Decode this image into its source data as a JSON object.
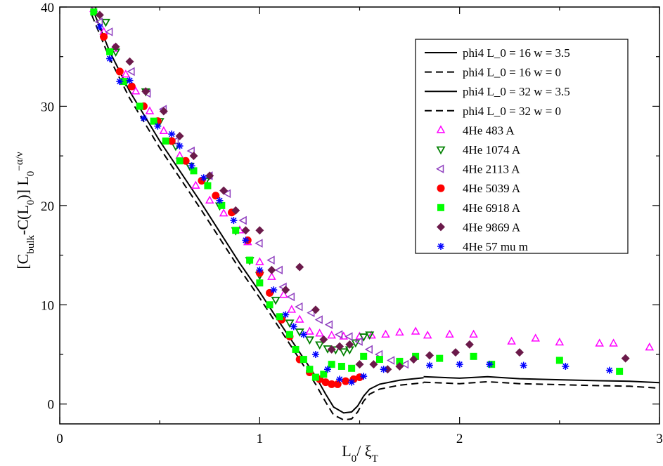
{
  "chart_data": {
    "type": "scatter",
    "title": "",
    "xlabel": {
      "main": "L",
      "sub1": "0",
      "slash": "/ ξ",
      "sub2": "T"
    },
    "ylabel": {
      "open": "[C",
      "sub1": "bulk",
      "mid": "-C(L",
      "sub2": "0",
      "close": ")] L",
      "sub3": "0",
      "sup": "−α/ν"
    },
    "xlim": [
      0,
      3
    ],
    "ylim": [
      -2,
      40
    ],
    "xticks": [
      {
        "value": 0,
        "label": "0"
      },
      {
        "value": 1,
        "label": "1"
      },
      {
        "value": 2,
        "label": "2"
      },
      {
        "value": 3,
        "label": "3"
      }
    ],
    "yticks": [
      {
        "value": 0,
        "label": "0"
      },
      {
        "value": 10,
        "label": "10"
      },
      {
        "value": 20,
        "label": "20"
      },
      {
        "value": 30,
        "label": "30"
      },
      {
        "value": 40,
        "label": "40"
      }
    ],
    "legend_position": "top-right",
    "line_series": [
      {
        "name": "phi4 L_0 = 16 w = 3.5",
        "dash": "solid",
        "points": [
          [
            0.16,
            40
          ],
          [
            0.25,
            35.5
          ],
          [
            0.35,
            31.5
          ],
          [
            0.5,
            26.5
          ],
          [
            0.7,
            20.5
          ],
          [
            0.9,
            14.2
          ],
          [
            1.0,
            11.3
          ],
          [
            1.1,
            8.2
          ],
          [
            1.2,
            5.2
          ],
          [
            1.28,
            2.8
          ],
          [
            1.33,
            1.0
          ],
          [
            1.37,
            -0.3
          ],
          [
            1.42,
            -0.9
          ],
          [
            1.46,
            -0.8
          ],
          [
            1.49,
            -0.2
          ],
          [
            1.52,
            0.8
          ],
          [
            1.55,
            1.5
          ],
          [
            1.6,
            2.0
          ],
          [
            1.7,
            2.4
          ],
          [
            1.8,
            2.6
          ],
          [
            1.82,
            2.65
          ]
        ]
      },
      {
        "name": "phi4 L_0 = 16 w = 0",
        "dash": "dashed",
        "points": [
          [
            0.16,
            39.2
          ],
          [
            0.25,
            34.8
          ],
          [
            0.35,
            30.8
          ],
          [
            0.5,
            25.8
          ],
          [
            0.7,
            19.8
          ],
          [
            0.9,
            13.6
          ],
          [
            1.0,
            10.7
          ],
          [
            1.1,
            7.6
          ],
          [
            1.2,
            4.5
          ],
          [
            1.28,
            2.0
          ],
          [
            1.33,
            0.2
          ],
          [
            1.37,
            -1.1
          ],
          [
            1.42,
            -1.6
          ],
          [
            1.46,
            -1.5
          ],
          [
            1.49,
            -0.8
          ],
          [
            1.52,
            0.3
          ],
          [
            1.55,
            1.0
          ],
          [
            1.6,
            1.5
          ],
          [
            1.7,
            1.9
          ],
          [
            1.8,
            2.1
          ],
          [
            1.82,
            2.15
          ]
        ]
      },
      {
        "name": "phi4 L_0 = 32 w = 3.5",
        "dash": "solid",
        "points": [
          [
            1.82,
            2.75
          ],
          [
            2.0,
            2.6
          ],
          [
            2.14,
            2.75
          ],
          [
            2.3,
            2.55
          ],
          [
            2.5,
            2.45
          ],
          [
            2.7,
            2.35
          ],
          [
            2.85,
            2.3
          ],
          [
            3.0,
            2.15
          ]
        ]
      },
      {
        "name": "phi4 L_0 = 32 w = 0",
        "dash": "dashed",
        "points": [
          [
            1.82,
            2.2
          ],
          [
            2.0,
            2.05
          ],
          [
            2.14,
            2.25
          ],
          [
            2.3,
            2.05
          ],
          [
            2.5,
            1.95
          ],
          [
            2.7,
            1.85
          ],
          [
            2.85,
            1.8
          ],
          [
            3.0,
            1.6
          ]
        ]
      }
    ],
    "scatter_series": [
      {
        "name": "4He   483 A",
        "marker": "triangle-up",
        "color": "#ff00ff",
        "points": [
          [
            0.17,
            39.8
          ],
          [
            0.22,
            37.5
          ],
          [
            0.27,
            35.8
          ],
          [
            0.33,
            33.2
          ],
          [
            0.38,
            31.5
          ],
          [
            0.45,
            29.5
          ],
          [
            0.52,
            27.5
          ],
          [
            0.6,
            25.0
          ],
          [
            0.68,
            22.0
          ],
          [
            0.75,
            20.5
          ],
          [
            0.82,
            19.2
          ],
          [
            0.9,
            17.5
          ],
          [
            0.94,
            16.3
          ],
          [
            1.0,
            14.3
          ],
          [
            1.06,
            12.8
          ],
          [
            1.12,
            11.0
          ],
          [
            1.16,
            9.5
          ],
          [
            1.2,
            8.5
          ],
          [
            1.25,
            7.3
          ],
          [
            1.3,
            7.1
          ],
          [
            1.36,
            6.9
          ],
          [
            1.42,
            6.8
          ],
          [
            1.5,
            6.8
          ],
          [
            1.56,
            6.9
          ],
          [
            1.63,
            7.0
          ],
          [
            1.7,
            7.2
          ],
          [
            1.78,
            7.3
          ],
          [
            1.84,
            6.9
          ],
          [
            1.95,
            7.0
          ],
          [
            2.07,
            7.0
          ],
          [
            2.26,
            6.3
          ],
          [
            2.38,
            6.6
          ],
          [
            2.5,
            6.2
          ],
          [
            2.7,
            6.1
          ],
          [
            2.77,
            6.1
          ],
          [
            2.95,
            5.7
          ]
        ]
      },
      {
        "name": "4He 1074 A",
        "marker": "triangle-down",
        "color": "#008000",
        "points": [
          [
            0.18,
            40.3
          ],
          [
            0.23,
            38.5
          ],
          [
            0.28,
            35.5
          ],
          [
            0.33,
            32.5
          ],
          [
            0.43,
            31.5
          ],
          [
            0.5,
            28.5
          ],
          [
            0.58,
            26.0
          ],
          [
            0.65,
            24.0
          ],
          [
            0.73,
            22.5
          ],
          [
            0.8,
            20.0
          ],
          [
            0.88,
            17.5
          ],
          [
            0.95,
            14.5
          ],
          [
            1.0,
            13.0
          ],
          [
            1.08,
            10.5
          ],
          [
            1.15,
            8.2
          ],
          [
            1.2,
            7.3
          ],
          [
            1.25,
            6.5
          ],
          [
            1.3,
            6.0
          ],
          [
            1.34,
            5.6
          ],
          [
            1.38,
            5.5
          ],
          [
            1.42,
            5.3
          ],
          [
            1.45,
            5.5
          ],
          [
            1.48,
            6.2
          ],
          [
            1.52,
            6.8
          ],
          [
            1.55,
            7.0
          ]
        ]
      },
      {
        "name": "4He 2113 A",
        "marker": "triangle-left",
        "color": "#8f3fbf",
        "points": [
          [
            0.2,
            38.5
          ],
          [
            0.25,
            37.5
          ],
          [
            0.36,
            33.5
          ],
          [
            0.44,
            31.3
          ],
          [
            0.52,
            29.7
          ],
          [
            0.58,
            26.5
          ],
          [
            0.66,
            25.5
          ],
          [
            0.75,
            23.0
          ],
          [
            0.84,
            21.2
          ],
          [
            0.92,
            18.5
          ],
          [
            1.0,
            16.2
          ],
          [
            1.06,
            14.5
          ],
          [
            1.1,
            13.5
          ],
          [
            1.12,
            11.8
          ],
          [
            1.16,
            10.8
          ],
          [
            1.2,
            9.8
          ],
          [
            1.26,
            9.2
          ],
          [
            1.3,
            8.5
          ],
          [
            1.35,
            8.0
          ],
          [
            1.4,
            7.0
          ],
          [
            1.45,
            6.8
          ],
          [
            1.5,
            6.3
          ],
          [
            1.55,
            5.5
          ],
          [
            1.6,
            5.0
          ],
          [
            1.66,
            4.4
          ],
          [
            1.73,
            4.0
          ]
        ]
      },
      {
        "name": "4He 5039 A",
        "marker": "circle",
        "color": "#ff0000",
        "points": [
          [
            0.22,
            37.0
          ],
          [
            0.3,
            33.5
          ],
          [
            0.36,
            32.0
          ],
          [
            0.42,
            30.0
          ],
          [
            0.49,
            28.5
          ],
          [
            0.56,
            26.5
          ],
          [
            0.63,
            24.5
          ],
          [
            0.71,
            22.5
          ],
          [
            0.78,
            21.0
          ],
          [
            0.86,
            19.3
          ],
          [
            0.94,
            16.5
          ],
          [
            1.0,
            13.2
          ],
          [
            1.05,
            11.2
          ],
          [
            1.11,
            8.5
          ],
          [
            1.15,
            6.8
          ],
          [
            1.2,
            4.5
          ],
          [
            1.25,
            3.2
          ],
          [
            1.3,
            2.5
          ],
          [
            1.33,
            2.2
          ],
          [
            1.36,
            2.0
          ],
          [
            1.39,
            2.0
          ],
          [
            1.43,
            2.3
          ],
          [
            1.47,
            2.5
          ],
          [
            1.5,
            2.7
          ]
        ]
      },
      {
        "name": "4He 6918 A",
        "marker": "square",
        "color": "#00ff00",
        "points": [
          [
            0.17,
            39.5
          ],
          [
            0.25,
            35.5
          ],
          [
            0.32,
            32.5
          ],
          [
            0.4,
            30.0
          ],
          [
            0.47,
            28.5
          ],
          [
            0.53,
            26.5
          ],
          [
            0.6,
            24.5
          ],
          [
            0.67,
            23.5
          ],
          [
            0.74,
            22.0
          ],
          [
            0.81,
            20.0
          ],
          [
            0.88,
            17.5
          ],
          [
            0.95,
            14.5
          ],
          [
            1.0,
            12.2
          ],
          [
            1.05,
            10.0
          ],
          [
            1.1,
            8.8
          ],
          [
            1.15,
            7.0
          ],
          [
            1.18,
            5.5
          ],
          [
            1.22,
            4.5
          ],
          [
            1.25,
            3.5
          ],
          [
            1.28,
            2.7
          ],
          [
            1.32,
            3.0
          ],
          [
            1.36,
            4.0
          ],
          [
            1.41,
            3.8
          ],
          [
            1.46,
            3.6
          ],
          [
            1.52,
            4.8
          ],
          [
            1.6,
            4.5
          ],
          [
            1.7,
            4.3
          ],
          [
            1.78,
            4.8
          ],
          [
            1.9,
            4.6
          ],
          [
            2.07,
            4.8
          ],
          [
            2.16,
            4.0
          ],
          [
            2.5,
            4.4
          ],
          [
            2.8,
            3.3
          ]
        ]
      },
      {
        "name": "4He 9869 A",
        "marker": "diamond",
        "color": "#6b1a4a",
        "points": [
          [
            0.2,
            39.2
          ],
          [
            0.28,
            36.0
          ],
          [
            0.35,
            34.5
          ],
          [
            0.43,
            31.5
          ],
          [
            0.52,
            29.5
          ],
          [
            0.6,
            27.0
          ],
          [
            0.67,
            25.0
          ],
          [
            0.75,
            23.0
          ],
          [
            0.82,
            21.5
          ],
          [
            0.88,
            19.5
          ],
          [
            0.93,
            17.5
          ],
          [
            1.0,
            17.5
          ],
          [
            1.06,
            13.5
          ],
          [
            1.13,
            11.5
          ],
          [
            1.2,
            13.8
          ],
          [
            1.28,
            9.5
          ],
          [
            1.32,
            6.5
          ],
          [
            1.36,
            5.5
          ],
          [
            1.4,
            5.8
          ],
          [
            1.45,
            6.0
          ],
          [
            1.5,
            4.0
          ],
          [
            1.57,
            4.0
          ],
          [
            1.64,
            3.5
          ],
          [
            1.7,
            3.8
          ],
          [
            1.77,
            4.5
          ],
          [
            1.85,
            4.9
          ],
          [
            1.98,
            5.2
          ],
          [
            2.05,
            6.0
          ],
          [
            2.3,
            5.2
          ],
          [
            2.83,
            4.6
          ]
        ]
      },
      {
        "name": "4He 57 mu m",
        "marker": "asterisk",
        "color": "#0000ff",
        "points": [
          [
            0.2,
            38.0
          ],
          [
            0.25,
            34.8
          ],
          [
            0.3,
            32.5
          ],
          [
            0.35,
            32.6
          ],
          [
            0.42,
            28.8
          ],
          [
            0.49,
            28.0
          ],
          [
            0.56,
            27.2
          ],
          [
            0.6,
            26.0
          ],
          [
            0.66,
            24.0
          ],
          [
            0.72,
            22.8
          ],
          [
            0.8,
            20.5
          ],
          [
            0.87,
            18.5
          ],
          [
            0.93,
            16.5
          ],
          [
            1.0,
            13.5
          ],
          [
            1.07,
            11.5
          ],
          [
            1.13,
            9.0
          ],
          [
            1.17,
            7.8
          ],
          [
            1.22,
            7.0
          ],
          [
            1.28,
            5.0
          ],
          [
            1.34,
            3.5
          ],
          [
            1.4,
            2.5
          ],
          [
            1.46,
            2.2
          ],
          [
            1.52,
            2.8
          ],
          [
            1.62,
            3.5
          ],
          [
            1.85,
            3.9
          ],
          [
            2.0,
            4.0
          ],
          [
            2.15,
            4.0
          ],
          [
            2.32,
            3.9
          ],
          [
            2.53,
            3.8
          ],
          [
            2.75,
            3.4
          ]
        ]
      }
    ]
  }
}
